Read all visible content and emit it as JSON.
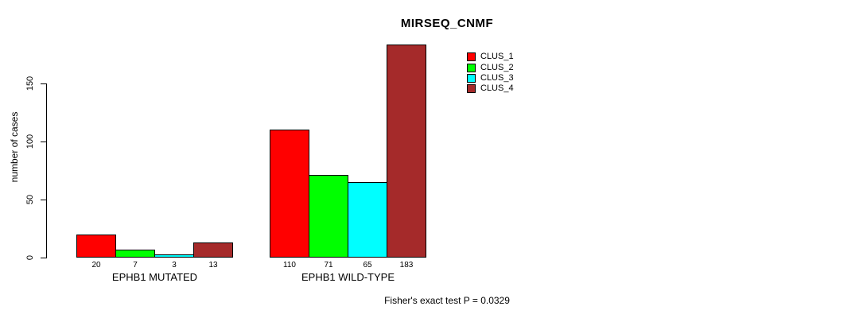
{
  "figure": {
    "title": "MIRSEQ_CNMF",
    "footer": "Fisher's exact test P = 0.0329"
  },
  "chart_data": {
    "type": "bar",
    "title": "MIRSEQ_CNMF",
    "xlabel": "",
    "ylabel": "number of cases",
    "ylim": [
      0,
      190
    ],
    "yticks": [
      0,
      50,
      100,
      150
    ],
    "grid": false,
    "legend_position": "top-right",
    "bar_border_color": "#000000",
    "categories": [
      "EPHB1 MUTATED",
      "EPHB1 WILD-TYPE"
    ],
    "series": [
      {
        "name": "CLUS_1",
        "color": "#ff0000",
        "values": [
          20,
          110
        ]
      },
      {
        "name": "CLUS_2",
        "color": "#00ff00",
        "values": [
          7,
          71
        ]
      },
      {
        "name": "CLUS_3",
        "color": "#00ffff",
        "values": [
          3,
          65
        ]
      },
      {
        "name": "CLUS_4",
        "color": "#a52a2a",
        "values": [
          13,
          183
        ]
      }
    ],
    "bar_value_labels": [
      [
        20,
        7,
        3,
        13
      ],
      [
        110,
        71,
        65,
        183
      ]
    ],
    "annotation": "Fisher's exact test P = 0.0329"
  }
}
